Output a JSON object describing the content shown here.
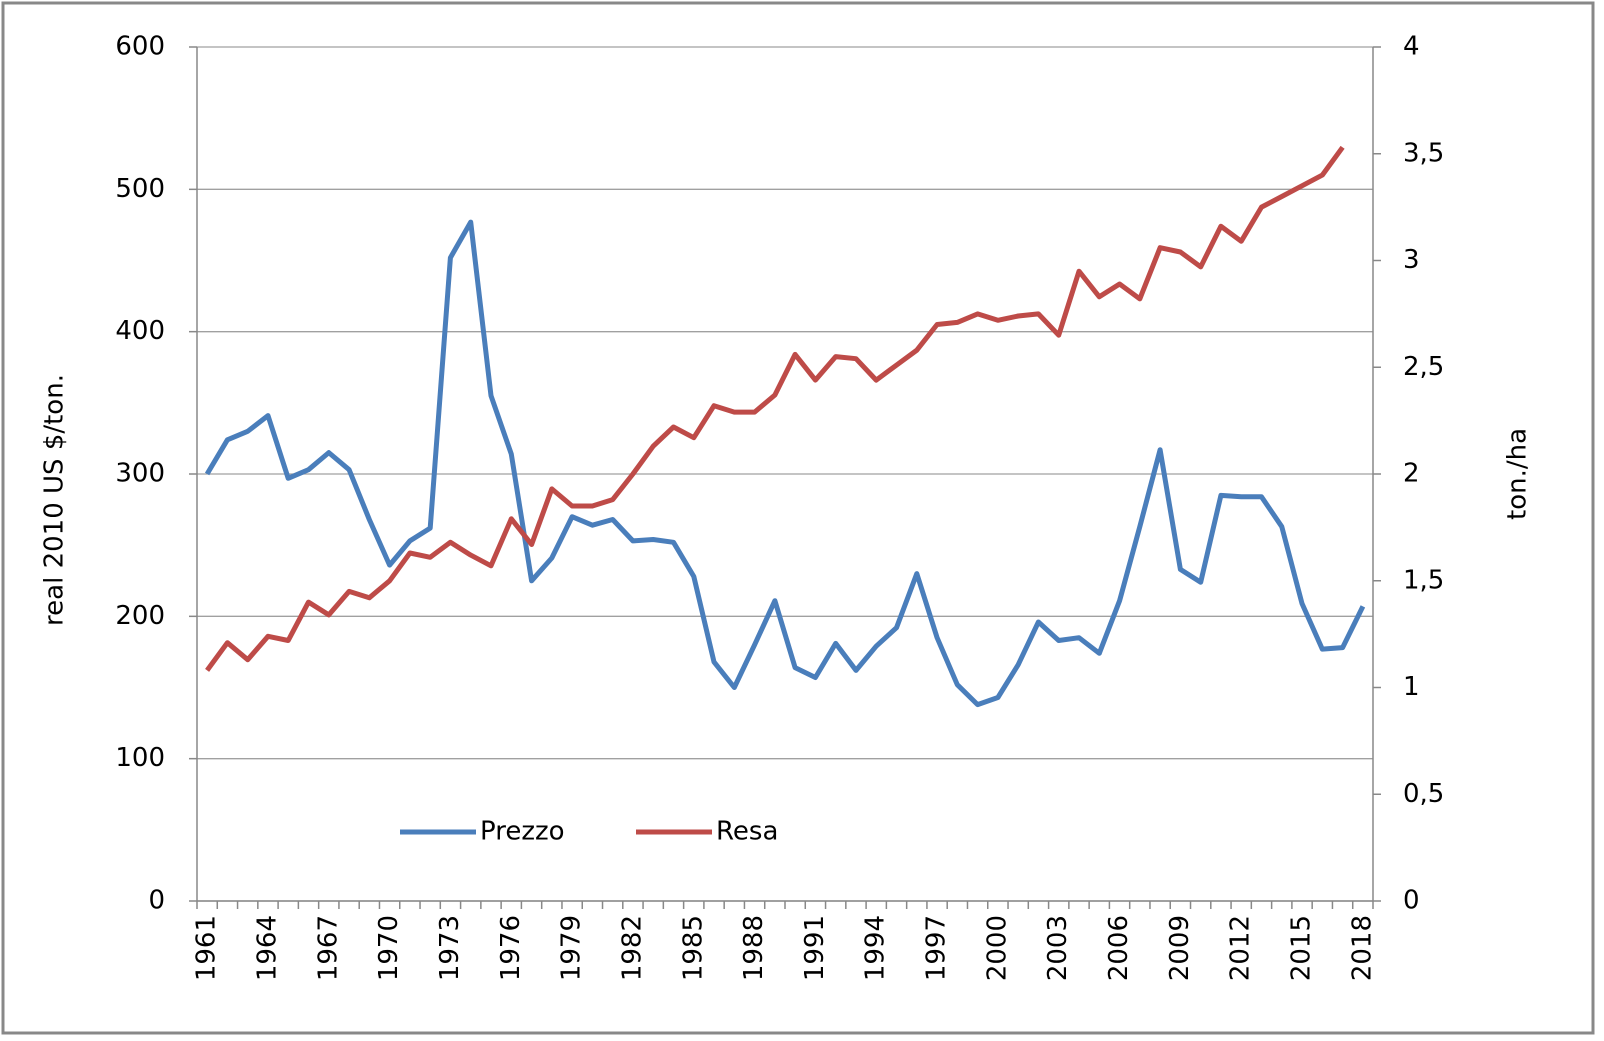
{
  "chart_data": {
    "type": "line",
    "y_label": "real 2010 US $/ton.",
    "y2_label": "ton./ha",
    "categories": [
      "1961",
      null,
      null,
      "1964",
      null,
      null,
      "1967",
      null,
      null,
      "1970",
      null,
      null,
      "1973",
      null,
      null,
      "1976",
      null,
      null,
      "1979",
      null,
      null,
      "1982",
      null,
      null,
      "1985",
      null,
      null,
      "1988",
      null,
      null,
      "1991",
      null,
      null,
      "1994",
      null,
      null,
      "1997",
      null,
      null,
      "2000",
      null,
      null,
      "2003",
      null,
      null,
      "2006",
      null,
      null,
      "2009",
      null,
      null,
      "2012",
      null,
      null,
      "2015",
      null,
      null,
      "2018"
    ],
    "series": [
      {
        "name": "Prezzo",
        "color": "#4a7ebb",
        "values": [
          300,
          324,
          330,
          341,
          297,
          303,
          315,
          303,
          268,
          236,
          253,
          262,
          452,
          477,
          355,
          314,
          225,
          241,
          270,
          264,
          268,
          253,
          254,
          252,
          228,
          168,
          150,
          180,
          211,
          164,
          157,
          181,
          162,
          179,
          192,
          230,
          185,
          152,
          138,
          143,
          166,
          196,
          183,
          185,
          174,
          211,
          263,
          317,
          233,
          224,
          285,
          284,
          284,
          263,
          209,
          177,
          178,
          207
        ]
      },
      {
        "name": "Resa",
        "color": "#be4b48",
        "axis": "y2",
        "values": [
          1.08,
          1.21,
          1.13,
          1.24,
          1.22,
          1.4,
          1.34,
          1.45,
          1.42,
          1.5,
          1.63,
          1.61,
          1.68,
          1.62,
          1.57,
          1.79,
          1.67,
          1.93,
          1.85,
          1.85,
          1.88,
          2.0,
          2.13,
          2.22,
          2.17,
          2.32,
          2.29,
          2.29,
          2.37,
          2.56,
          2.44,
          2.55,
          2.54,
          2.44,
          2.51,
          2.58,
          2.7,
          2.71,
          2.75,
          2.72,
          2.74,
          2.75,
          2.65,
          2.95,
          2.83,
          2.89,
          2.82,
          3.06,
          3.04,
          2.97,
          3.16,
          3.09,
          3.25,
          3.3,
          3.35,
          3.4,
          3.53,
          null
        ]
      }
    ],
    "ylim": [
      0,
      600
    ],
    "yticks": [
      0,
      100,
      200,
      300,
      400,
      500,
      600
    ],
    "y2lim": [
      0,
      4
    ],
    "y2ticks": [
      0,
      {
        "value": 0.5,
        "label": "0,5"
      },
      1,
      {
        "value": 1.5,
        "label": "1,5"
      },
      2,
      {
        "value": 2.5,
        "label": "2,5"
      },
      3,
      {
        "value": 3.5,
        "label": "3,5"
      },
      4
    ],
    "grid": true,
    "legend": "bottom-left"
  }
}
